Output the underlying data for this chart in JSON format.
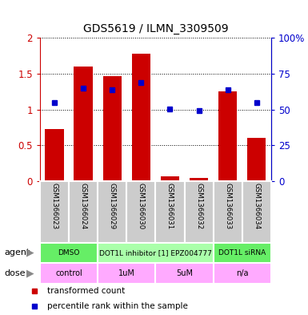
{
  "title": "GDS5619 / ILMN_3309509",
  "samples": [
    "GSM1366023",
    "GSM1366024",
    "GSM1366029",
    "GSM1366030",
    "GSM1366031",
    "GSM1366032",
    "GSM1366033",
    "GSM1366034"
  ],
  "bar_values": [
    0.73,
    1.6,
    1.47,
    1.78,
    0.07,
    0.05,
    1.25,
    0.6
  ],
  "dot_values": [
    1.1,
    1.3,
    1.27,
    1.37,
    1.01,
    0.98,
    1.27,
    1.1
  ],
  "bar_color": "#cc0000",
  "dot_color": "#0000cc",
  "ylim": [
    0,
    2
  ],
  "y2lim": [
    0,
    100
  ],
  "yticks": [
    0,
    0.5,
    1.0,
    1.5,
    2.0
  ],
  "ytick_labels": [
    "0",
    "0.5",
    "1",
    "1.5",
    "2"
  ],
  "y2ticks": [
    0,
    25,
    50,
    75,
    100
  ],
  "y2tick_labels": [
    "0",
    "25",
    "50",
    "75",
    "100%"
  ],
  "agent_groups": [
    {
      "label": "DMSO",
      "start": 0,
      "end": 2,
      "color": "#66ee66"
    },
    {
      "label": "DOT1L inhibitor [1] EPZ004777",
      "start": 2,
      "end": 6,
      "color": "#aaffaa"
    },
    {
      "label": "DOT1L siRNA",
      "start": 6,
      "end": 8,
      "color": "#66ee66"
    }
  ],
  "dose_groups": [
    {
      "label": "control",
      "start": 0,
      "end": 2,
      "color": "#ffaaff"
    },
    {
      "label": "1uM",
      "start": 2,
      "end": 4,
      "color": "#ffaaff"
    },
    {
      "label": "5uM",
      "start": 4,
      "end": 6,
      "color": "#ffaaff"
    },
    {
      "label": "n/a",
      "start": 6,
      "end": 8,
      "color": "#ffaaff"
    }
  ],
  "agent_label": "agent",
  "dose_label": "dose",
  "legend_bar": "transformed count",
  "legend_dot": "percentile rank within the sample",
  "background_color": "#ffffff",
  "grid_color": "#000000",
  "tick_color_left": "#cc0000",
  "tick_color_right": "#0000cc",
  "gray_box_color": "#cccccc",
  "gray_box_edge": "#ffffff"
}
